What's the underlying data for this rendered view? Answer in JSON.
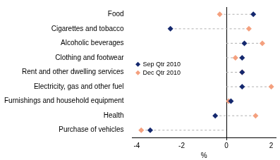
{
  "chart_data": {
    "type": "dot",
    "orientation": "horizontal",
    "categories": [
      "Food",
      "Cigarettes and tobacco",
      "Alcoholic beverages",
      "Clothing and footwear",
      "Rent and other dwelling services",
      "Electricity, gas and other fuel",
      "Furnishings and household equipment",
      "Health",
      "Purchase of vehicles"
    ],
    "series": [
      {
        "name": "Sep Qtr 2010",
        "color": "#14286e",
        "marker": "diamond",
        "values": [
          1.2,
          -2.5,
          0.8,
          0.7,
          0.7,
          0.7,
          0.2,
          -0.5,
          -3.4
        ]
      },
      {
        "name": "Dec Qtr 2010",
        "color": "#f4a07e",
        "marker": "diamond",
        "values": [
          -0.3,
          1.0,
          1.6,
          0.4,
          0.7,
          2.0,
          0.1,
          1.3,
          -3.8
        ]
      }
    ],
    "x_label": "%",
    "xlim": [
      -4.2,
      2.2
    ],
    "xticks": [
      -4,
      -2,
      0,
      2
    ],
    "grid": false,
    "legend": "left"
  }
}
